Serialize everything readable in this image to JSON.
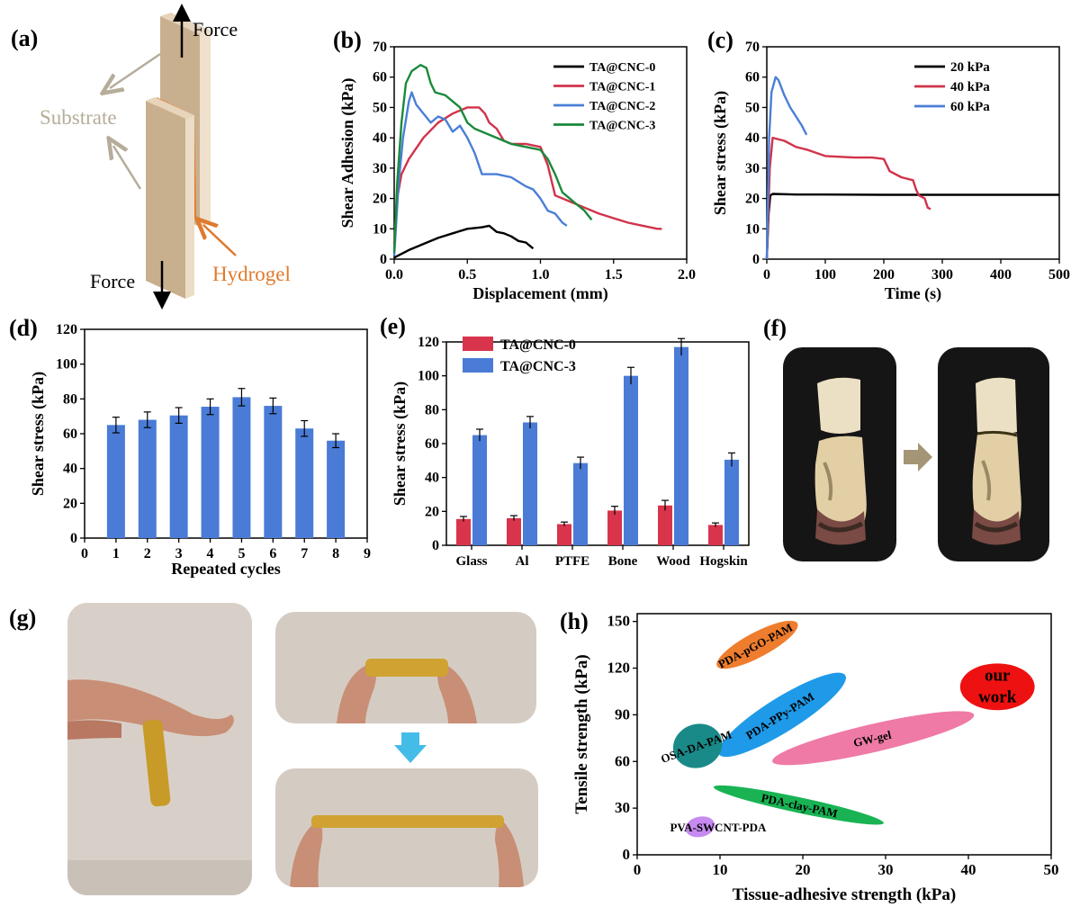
{
  "panel_labels": {
    "a": "(a)",
    "b": "(b)",
    "c": "(c)",
    "d": "(d)",
    "e": "(e)",
    "f": "(f)",
    "g": "(g)",
    "h": "(h)"
  },
  "schematic": {
    "force_top": "Force",
    "force_bottom": "Force",
    "substrate": "Substrate",
    "hydrogel": "Hydrogel"
  },
  "colors": {
    "black": "#000000",
    "red": "#d0334a",
    "blue": "#4a7fd6",
    "green": "#1a8a3c",
    "bar_red": "#d8344c",
    "bar_blue": "#4a7bd6",
    "substrate": "#dcc6a8",
    "hydrogel": "#e07a2e"
  },
  "chart_data": [
    {
      "id": "b",
      "type": "line",
      "xlabel": "Displacement (mm)",
      "ylabel": "Shear Adhesion (kPa)",
      "xlim": [
        0,
        2.0
      ],
      "ylim": [
        0,
        70
      ],
      "xticks": [
        0.0,
        0.5,
        1.0,
        1.5,
        2.0
      ],
      "yticks": [
        0,
        10,
        20,
        30,
        40,
        50,
        60,
        70
      ],
      "xtick_labels": [
        "0.0",
        "0.5",
        "1.0",
        "1.5",
        "2.0"
      ],
      "ytick_labels": [
        "0",
        "10",
        "20",
        "30",
        "40",
        "50",
        "60",
        "70"
      ],
      "legend_position": "top-right",
      "series": [
        {
          "name": "TA@CNC-0",
          "color": "#000000",
          "x": [
            0,
            0.1,
            0.2,
            0.3,
            0.4,
            0.5,
            0.6,
            0.65,
            0.7,
            0.75,
            0.8,
            0.85,
            0.9,
            0.95
          ],
          "y": [
            0.5,
            3,
            5,
            7,
            8.5,
            10,
            10.5,
            11,
            9,
            8.5,
            7.5,
            6,
            5.5,
            3.5
          ]
        },
        {
          "name": "TA@CNC-1",
          "color": "#d0334a",
          "x": [
            0,
            0.02,
            0.05,
            0.1,
            0.2,
            0.3,
            0.4,
            0.5,
            0.58,
            0.62,
            0.65,
            0.7,
            0.75,
            0.8,
            0.9,
            1.0,
            1.05,
            1.1,
            1.2,
            1.3,
            1.4,
            1.5,
            1.6,
            1.7,
            1.8,
            1.83
          ],
          "y": [
            5,
            20,
            28,
            33,
            40,
            45,
            48,
            50,
            50,
            48,
            45,
            43,
            39,
            38,
            38,
            37,
            31,
            21,
            19,
            17,
            15,
            13.5,
            12,
            11,
            10,
            10
          ]
        },
        {
          "name": "TA@CNC-2",
          "color": "#4a7fd6",
          "x": [
            0,
            0.03,
            0.06,
            0.1,
            0.12,
            0.15,
            0.2,
            0.25,
            0.3,
            0.35,
            0.4,
            0.45,
            0.5,
            0.55,
            0.6,
            0.7,
            0.8,
            0.9,
            0.95,
            1.0,
            1.05,
            1.1,
            1.15,
            1.18
          ],
          "y": [
            1,
            25,
            40,
            52,
            55,
            51,
            48,
            45,
            47,
            46,
            42,
            44,
            40,
            35,
            28,
            28,
            27,
            24,
            23,
            20,
            16,
            15,
            12,
            11
          ]
        },
        {
          "name": "TA@CNC-3",
          "color": "#1a8a3c",
          "x": [
            0,
            0.02,
            0.05,
            0.08,
            0.12,
            0.18,
            0.22,
            0.25,
            0.28,
            0.35,
            0.4,
            0.45,
            0.5,
            0.55,
            0.6,
            0.7,
            0.8,
            0.9,
            1.0,
            1.05,
            1.1,
            1.15,
            1.2,
            1.3,
            1.35
          ],
          "y": [
            2,
            25,
            45,
            58,
            62,
            64,
            63,
            58,
            55,
            54,
            52,
            50,
            45,
            43,
            42,
            40,
            38,
            37,
            36,
            33,
            28,
            22,
            20,
            16,
            13
          ]
        }
      ]
    },
    {
      "id": "c",
      "type": "line",
      "xlabel": "Time (s)",
      "ylabel": "Shear stress (kPa)",
      "xlim": [
        0,
        500
      ],
      "ylim": [
        0,
        70
      ],
      "xticks": [
        0,
        100,
        200,
        300,
        400,
        500
      ],
      "yticks": [
        0,
        10,
        20,
        30,
        40,
        50,
        60,
        70
      ],
      "xtick_labels": [
        "0",
        "100",
        "200",
        "300",
        "400",
        "500"
      ],
      "ytick_labels": [
        "0",
        "10",
        "20",
        "30",
        "40",
        "50",
        "60",
        "70"
      ],
      "legend_position": "top-right",
      "series": [
        {
          "name": "20 kPa",
          "color": "#000000",
          "x": [
            0,
            3,
            6,
            10,
            50,
            100,
            200,
            300,
            400,
            500
          ],
          "y": [
            0,
            15,
            21,
            21.5,
            21.3,
            21.3,
            21.2,
            21.2,
            21.2,
            21.2
          ]
        },
        {
          "name": "40 kPa",
          "color": "#d0334a",
          "x": [
            0,
            5,
            10,
            30,
            50,
            70,
            100,
            150,
            180,
            200,
            210,
            230,
            250,
            255,
            260,
            270,
            275,
            280
          ],
          "y": [
            0,
            30,
            40,
            39,
            37,
            36,
            34,
            33.5,
            33.5,
            33,
            29,
            27,
            26,
            23,
            21,
            20,
            17,
            16.5
          ]
        },
        {
          "name": "60 kPa",
          "color": "#4a7fd6",
          "x": [
            0,
            4,
            8,
            15,
            20,
            30,
            40,
            50,
            60,
            68
          ],
          "y": [
            0,
            40,
            55,
            60,
            59,
            54,
            50,
            47,
            44,
            41
          ]
        }
      ]
    },
    {
      "id": "d",
      "type": "bar",
      "xlabel": "Repeated cycles",
      "ylabel": "Shear stress (kPa)",
      "xlim": [
        0,
        9
      ],
      "ylim": [
        0,
        120
      ],
      "xticks": [
        0,
        1,
        2,
        3,
        4,
        5,
        6,
        7,
        8,
        9
      ],
      "yticks": [
        0,
        20,
        40,
        60,
        80,
        100,
        120
      ],
      "xtick_labels": [
        "0",
        "1",
        "2",
        "3",
        "4",
        "5",
        "6",
        "7",
        "8",
        "9"
      ],
      "ytick_labels": [
        "0",
        "20",
        "40",
        "60",
        "80",
        "100",
        "120"
      ],
      "categories": [
        1,
        2,
        3,
        4,
        5,
        6,
        7,
        8
      ],
      "values": [
        65,
        68,
        70.5,
        75.5,
        81,
        76,
        63,
        56
      ],
      "errors": [
        4.5,
        4.5,
        4.5,
        4.5,
        5,
        4.5,
        4.5,
        4
      ]
    },
    {
      "id": "e",
      "type": "bar",
      "xlabel": "",
      "ylabel": "Shear stress (kPa)",
      "ylim": [
        0,
        120
      ],
      "yticks": [
        0,
        20,
        40,
        60,
        80,
        100,
        120
      ],
      "ytick_labels": [
        "0",
        "20",
        "40",
        "60",
        "80",
        "100",
        "120"
      ],
      "legend_position": "top-left",
      "categories": [
        "Glass",
        "Al",
        "PTFE",
        "Bone",
        "Wood",
        "Hogskin"
      ],
      "series": [
        {
          "name": "TA@CNC-0",
          "color": "#d8344c",
          "values": [
            15.5,
            16,
            12.5,
            20.5,
            23.5,
            12
          ],
          "errors": [
            1.5,
            1.5,
            1.2,
            2.5,
            3,
            1.2
          ]
        },
        {
          "name": "TA@CNC-3",
          "color": "#4a7bd6",
          "values": [
            65,
            72.5,
            48.5,
            100,
            117,
            50.5
          ],
          "errors": [
            3.5,
            3.5,
            3.5,
            5,
            5,
            4
          ]
        }
      ]
    },
    {
      "id": "h",
      "type": "scatter",
      "xlabel": "Tissue-adhesive strength (kPa)",
      "ylabel": "Tensile strength (kPa)",
      "xlim": [
        0,
        50
      ],
      "ylim": [
        0,
        155
      ],
      "xticks": [
        0,
        10,
        20,
        30,
        40,
        50
      ],
      "yticks": [
        0,
        30,
        60,
        90,
        120,
        150
      ],
      "xtick_labels": [
        "0",
        "10",
        "20",
        "30",
        "40",
        "50"
      ],
      "ytick_labels": [
        "0",
        "30",
        "60",
        "90",
        "120",
        "150"
      ],
      "regions": [
        {
          "name": "PDA-pGO-PAM",
          "color": "#ee7d2e",
          "cx": 14.5,
          "cy": 135,
          "rx": 5.5,
          "ry": 8,
          "angle": -28
        },
        {
          "name": "PDA-PPy-PAM",
          "color": "#1f9ae8",
          "cx": 17.5,
          "cy": 90,
          "rx": 9,
          "ry": 11,
          "angle": -32
        },
        {
          "name": "OSA-DA-PAM",
          "color": "#1a8a88",
          "cx": 7.3,
          "cy": 70,
          "rx": 3,
          "ry": 14,
          "angle": -20
        },
        {
          "name": "GW-gel",
          "color": "#ef7aa6",
          "cx": 28.5,
          "cy": 75,
          "rx": 12.5,
          "ry": 9,
          "angle": -13
        },
        {
          "name": "PDA-clay-PAM",
          "color": "#19b354",
          "cx": 19.5,
          "cy": 32,
          "rx": 10.5,
          "ry": 5,
          "angle": 12
        },
        {
          "name": "PVA-SWCNT-PDA",
          "color": "#c68af0",
          "cx": 7.6,
          "cy": 18,
          "rx": 1.8,
          "ry": 6.5,
          "angle": -12
        },
        {
          "name": "our\nwork",
          "color": "#ee1111",
          "cx": 43.5,
          "cy": 108,
          "rx": 4.5,
          "ry": 15,
          "angle": 0
        }
      ]
    }
  ]
}
